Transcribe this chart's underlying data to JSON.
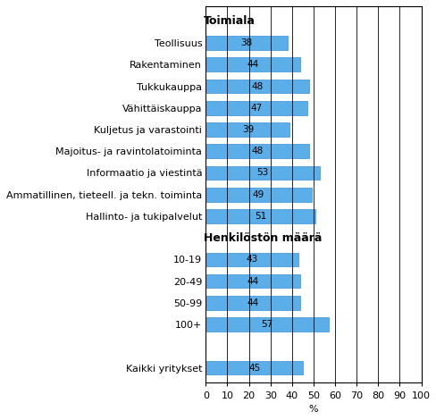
{
  "items": [
    {
      "label": "Toimiala",
      "value": null,
      "is_header": true
    },
    {
      "label": "Teollisuus",
      "value": 38,
      "is_header": false
    },
    {
      "label": "Rakentaminen",
      "value": 44,
      "is_header": false
    },
    {
      "label": "Tukkukauppa",
      "value": 48,
      "is_header": false
    },
    {
      "label": "Vähittäiskauppa",
      "value": 47,
      "is_header": false
    },
    {
      "label": "Kuljetus ja varastointi",
      "value": 39,
      "is_header": false
    },
    {
      "label": "Majoitus- ja ravintolatoiminta",
      "value": 48,
      "is_header": false
    },
    {
      "label": "Informaatio ja viestintä",
      "value": 53,
      "is_header": false
    },
    {
      "label": "Ammatillinen, tieteell. ja tekn. toiminta",
      "value": 49,
      "is_header": false
    },
    {
      "label": "Hallinto- ja tukipalvelut",
      "value": 51,
      "is_header": false
    },
    {
      "label": "Henkilöstön määrä",
      "value": null,
      "is_header": true
    },
    {
      "label": "10-19",
      "value": 43,
      "is_header": false
    },
    {
      "label": "20-49",
      "value": 44,
      "is_header": false
    },
    {
      "label": "50-99",
      "value": 44,
      "is_header": false
    },
    {
      "label": "100+",
      "value": 57,
      "is_header": false
    },
    {
      "label": "",
      "value": null,
      "is_header": false
    },
    {
      "label": "Kaikki yritykset",
      "value": 45,
      "is_header": false
    }
  ],
  "bar_color": "#5baee8",
  "bar_edge_color": "#3a8fd4",
  "xlabel": "%",
  "xlim": [
    0,
    100
  ],
  "xticks": [
    0,
    10,
    20,
    30,
    40,
    50,
    60,
    70,
    80,
    90,
    100
  ],
  "label_fontsize": 8.0,
  "value_fontsize": 7.5,
  "header_fontsize": 9.0,
  "bar_height": 0.65,
  "figsize": [
    4.89,
    4.7
  ],
  "dpi": 100
}
